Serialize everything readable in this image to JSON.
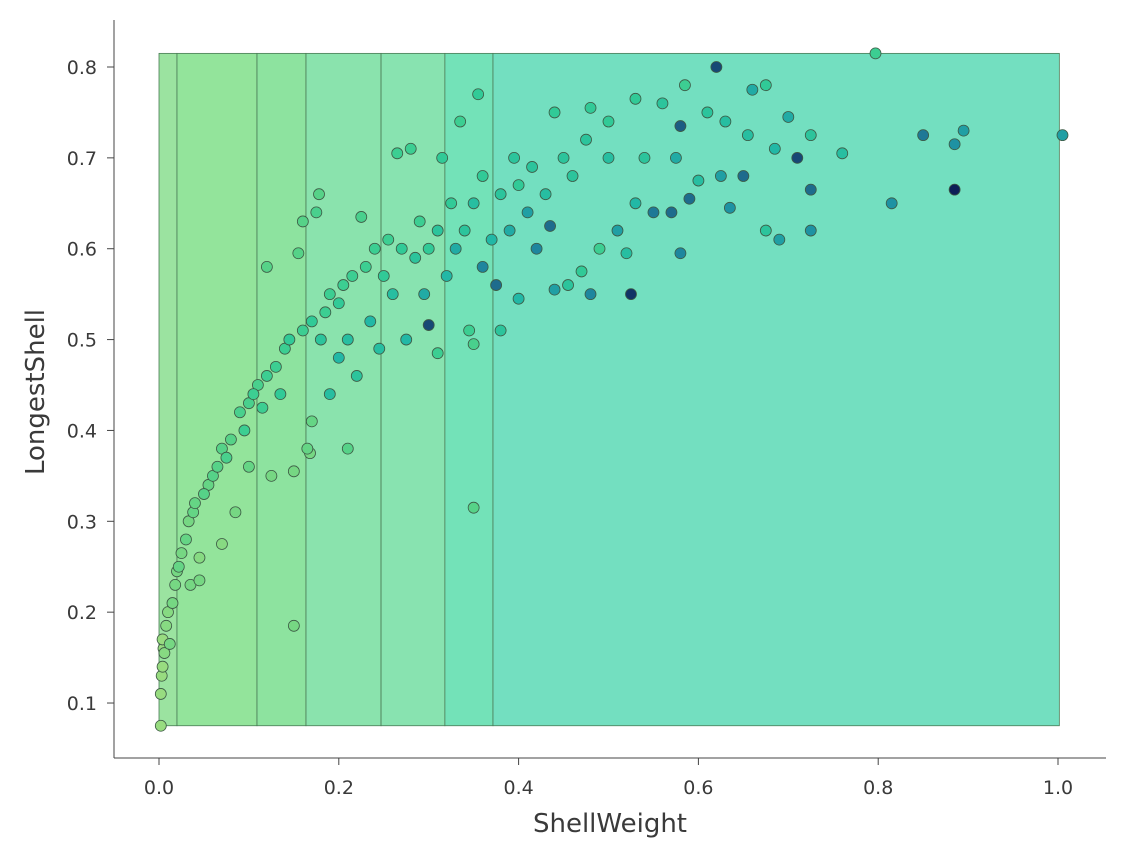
{
  "chart_data": {
    "type": "scatter",
    "title": "",
    "xlabel": "ShellWeight",
    "ylabel": "LongestShell",
    "xlim": [
      -0.05,
      1.055
    ],
    "ylim": [
      0.04,
      0.85
    ],
    "xticks": [
      "0.0",
      "0.2",
      "0.4",
      "0.6",
      "0.8",
      "1.0"
    ],
    "yticks": [
      "0.1",
      "0.2",
      "0.3",
      "0.4",
      "0.5",
      "0.6",
      "0.7",
      "0.8"
    ],
    "grid": false,
    "background_bands": [
      {
        "x0": 0.0,
        "x1": 0.02,
        "color": "#9be3a0"
      },
      {
        "x0": 0.02,
        "x1": 0.109,
        "color": "#93e49b"
      },
      {
        "x0": 0.109,
        "x1": 0.1635,
        "color": "#8de39f"
      },
      {
        "x0": 0.1635,
        "x1": 0.247,
        "color": "#8ae3ad"
      },
      {
        "x0": 0.247,
        "x1": 0.318,
        "color": "#88e3b0"
      },
      {
        "x0": 0.318,
        "x1": 0.3715,
        "color": "#73e2b8"
      },
      {
        "x0": 0.3715,
        "x1": 1.0015,
        "color": "#73dfc0"
      }
    ],
    "band_ylim": [
      0.075,
      0.815
    ],
    "colormap": [
      "#98dc80",
      "#5fd485",
      "#33cc95",
      "#22b8a6",
      "#1e8ea3",
      "#1e6488",
      "#0d1f58"
    ],
    "points": [
      [
        0.002,
        0.075,
        0.0
      ],
      [
        0.002,
        0.11,
        0.0
      ],
      [
        0.003,
        0.13,
        0.0
      ],
      [
        0.004,
        0.14,
        0.0
      ],
      [
        0.005,
        0.16,
        0.0
      ],
      [
        0.004,
        0.17,
        0.0
      ],
      [
        0.006,
        0.155,
        0.05
      ],
      [
        0.008,
        0.185,
        0.05
      ],
      [
        0.01,
        0.2,
        0.05
      ],
      [
        0.012,
        0.165,
        0.1
      ],
      [
        0.015,
        0.21,
        0.1
      ],
      [
        0.018,
        0.23,
        0.1
      ],
      [
        0.02,
        0.245,
        0.1
      ],
      [
        0.022,
        0.25,
        0.15
      ],
      [
        0.025,
        0.265,
        0.1
      ],
      [
        0.03,
        0.28,
        0.15
      ],
      [
        0.033,
        0.3,
        0.1
      ],
      [
        0.035,
        0.23,
        0.1
      ],
      [
        0.038,
        0.31,
        0.15
      ],
      [
        0.04,
        0.32,
        0.15
      ],
      [
        0.045,
        0.235,
        0.1
      ],
      [
        0.045,
        0.26,
        0.05
      ],
      [
        0.05,
        0.33,
        0.2
      ],
      [
        0.055,
        0.34,
        0.15
      ],
      [
        0.06,
        0.35,
        0.2
      ],
      [
        0.065,
        0.36,
        0.2
      ],
      [
        0.07,
        0.275,
        0.05
      ],
      [
        0.07,
        0.38,
        0.2
      ],
      [
        0.075,
        0.37,
        0.25
      ],
      [
        0.08,
        0.39,
        0.2
      ],
      [
        0.085,
        0.31,
        0.1
      ],
      [
        0.09,
        0.42,
        0.25
      ],
      [
        0.095,
        0.4,
        0.3
      ],
      [
        0.1,
        0.43,
        0.25
      ],
      [
        0.1,
        0.36,
        0.15
      ],
      [
        0.105,
        0.44,
        0.3
      ],
      [
        0.11,
        0.45,
        0.25
      ],
      [
        0.115,
        0.425,
        0.3
      ],
      [
        0.12,
        0.58,
        0.2
      ],
      [
        0.12,
        0.46,
        0.3
      ],
      [
        0.125,
        0.35,
        0.1
      ],
      [
        0.13,
        0.47,
        0.3
      ],
      [
        0.135,
        0.44,
        0.35
      ],
      [
        0.14,
        0.49,
        0.3
      ],
      [
        0.145,
        0.5,
        0.35
      ],
      [
        0.15,
        0.185,
        0.1
      ],
      [
        0.15,
        0.355,
        0.1
      ],
      [
        0.155,
        0.595,
        0.2
      ],
      [
        0.16,
        0.51,
        0.3
      ],
      [
        0.16,
        0.63,
        0.2
      ],
      [
        0.165,
        0.38,
        0.15
      ],
      [
        0.168,
        0.375,
        0.1
      ],
      [
        0.17,
        0.41,
        0.15
      ],
      [
        0.17,
        0.52,
        0.35
      ],
      [
        0.175,
        0.64,
        0.25
      ],
      [
        0.178,
        0.66,
        0.2
      ],
      [
        0.18,
        0.5,
        0.4
      ],
      [
        0.185,
        0.53,
        0.3
      ],
      [
        0.19,
        0.44,
        0.45
      ],
      [
        0.19,
        0.55,
        0.3
      ],
      [
        0.2,
        0.54,
        0.35
      ],
      [
        0.2,
        0.48,
        0.5
      ],
      [
        0.205,
        0.56,
        0.3
      ],
      [
        0.21,
        0.38,
        0.2
      ],
      [
        0.21,
        0.5,
        0.45
      ],
      [
        0.215,
        0.57,
        0.3
      ],
      [
        0.22,
        0.46,
        0.4
      ],
      [
        0.225,
        0.635,
        0.25
      ],
      [
        0.23,
        0.58,
        0.3
      ],
      [
        0.235,
        0.52,
        0.5
      ],
      [
        0.24,
        0.6,
        0.3
      ],
      [
        0.245,
        0.49,
        0.45
      ],
      [
        0.25,
        0.57,
        0.35
      ],
      [
        0.255,
        0.61,
        0.3
      ],
      [
        0.26,
        0.55,
        0.45
      ],
      [
        0.265,
        0.705,
        0.3
      ],
      [
        0.27,
        0.6,
        0.35
      ],
      [
        0.275,
        0.5,
        0.5
      ],
      [
        0.28,
        0.71,
        0.3
      ],
      [
        0.285,
        0.59,
        0.4
      ],
      [
        0.29,
        0.63,
        0.3
      ],
      [
        0.295,
        0.55,
        0.55
      ],
      [
        0.3,
        0.516,
        0.9
      ],
      [
        0.3,
        0.6,
        0.35
      ],
      [
        0.31,
        0.62,
        0.4
      ],
      [
        0.31,
        0.485,
        0.3
      ],
      [
        0.315,
        0.7,
        0.35
      ],
      [
        0.32,
        0.57,
        0.5
      ],
      [
        0.325,
        0.65,
        0.35
      ],
      [
        0.33,
        0.6,
        0.55
      ],
      [
        0.335,
        0.74,
        0.3
      ],
      [
        0.34,
        0.62,
        0.4
      ],
      [
        0.345,
        0.51,
        0.3
      ],
      [
        0.35,
        0.315,
        0.2
      ],
      [
        0.35,
        0.495,
        0.25
      ],
      [
        0.35,
        0.65,
        0.45
      ],
      [
        0.355,
        0.77,
        0.35
      ],
      [
        0.36,
        0.58,
        0.7
      ],
      [
        0.36,
        0.68,
        0.35
      ],
      [
        0.37,
        0.61,
        0.5
      ],
      [
        0.375,
        0.56,
        0.8
      ],
      [
        0.38,
        0.51,
        0.4
      ],
      [
        0.38,
        0.66,
        0.4
      ],
      [
        0.39,
        0.62,
        0.55
      ],
      [
        0.395,
        0.7,
        0.4
      ],
      [
        0.4,
        0.545,
        0.5
      ],
      [
        0.4,
        0.67,
        0.35
      ],
      [
        0.41,
        0.64,
        0.6
      ],
      [
        0.415,
        0.69,
        0.4
      ],
      [
        0.42,
        0.6,
        0.7
      ],
      [
        0.43,
        0.66,
        0.45
      ],
      [
        0.435,
        0.625,
        0.8
      ],
      [
        0.44,
        0.75,
        0.35
      ],
      [
        0.44,
        0.555,
        0.6
      ],
      [
        0.45,
        0.7,
        0.4
      ],
      [
        0.455,
        0.56,
        0.4
      ],
      [
        0.46,
        0.68,
        0.4
      ],
      [
        0.47,
        0.575,
        0.35
      ],
      [
        0.475,
        0.72,
        0.4
      ],
      [
        0.48,
        0.55,
        0.7
      ],
      [
        0.48,
        0.755,
        0.35
      ],
      [
        0.49,
        0.6,
        0.3
      ],
      [
        0.5,
        0.7,
        0.45
      ],
      [
        0.5,
        0.74,
        0.35
      ],
      [
        0.51,
        0.62,
        0.6
      ],
      [
        0.52,
        0.595,
        0.45
      ],
      [
        0.525,
        0.55,
        0.95
      ],
      [
        0.53,
        0.765,
        0.35
      ],
      [
        0.53,
        0.65,
        0.5
      ],
      [
        0.54,
        0.7,
        0.4
      ],
      [
        0.55,
        0.64,
        0.75
      ],
      [
        0.56,
        0.76,
        0.4
      ],
      [
        0.57,
        0.64,
        0.8
      ],
      [
        0.575,
        0.7,
        0.55
      ],
      [
        0.58,
        0.595,
        0.7
      ],
      [
        0.58,
        0.735,
        0.85
      ],
      [
        0.585,
        0.78,
        0.3
      ],
      [
        0.59,
        0.655,
        0.8
      ],
      [
        0.6,
        0.675,
        0.45
      ],
      [
        0.61,
        0.75,
        0.4
      ],
      [
        0.62,
        0.8,
        0.9
      ],
      [
        0.625,
        0.68,
        0.6
      ],
      [
        0.63,
        0.74,
        0.45
      ],
      [
        0.635,
        0.645,
        0.65
      ],
      [
        0.65,
        0.68,
        0.8
      ],
      [
        0.655,
        0.725,
        0.45
      ],
      [
        0.66,
        0.775,
        0.55
      ],
      [
        0.675,
        0.78,
        0.35
      ],
      [
        0.675,
        0.62,
        0.4
      ],
      [
        0.685,
        0.71,
        0.5
      ],
      [
        0.69,
        0.61,
        0.6
      ],
      [
        0.7,
        0.745,
        0.55
      ],
      [
        0.71,
        0.7,
        0.9
      ],
      [
        0.725,
        0.665,
        0.8
      ],
      [
        0.725,
        0.725,
        0.4
      ],
      [
        0.725,
        0.62,
        0.65
      ],
      [
        0.76,
        0.705,
        0.45
      ],
      [
        0.797,
        0.815,
        0.3
      ],
      [
        0.815,
        0.65,
        0.65
      ],
      [
        0.85,
        0.725,
        0.75
      ],
      [
        0.885,
        0.665,
        1.0
      ],
      [
        0.885,
        0.715,
        0.65
      ],
      [
        0.895,
        0.73,
        0.6
      ],
      [
        1.005,
        0.725,
        0.6
      ]
    ]
  }
}
